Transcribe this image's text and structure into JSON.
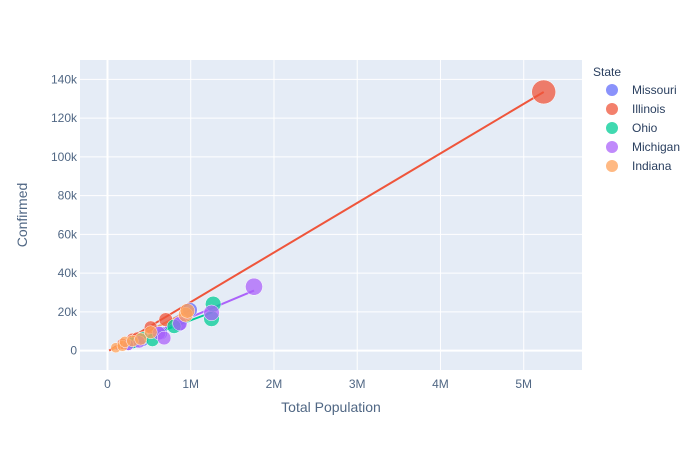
{
  "chart_data": {
    "type": "scatter",
    "xlabel": "Total Population",
    "ylabel": "Confirmed",
    "xlim": [
      -330000,
      5700000
    ],
    "ylim": [
      -10000,
      150000
    ],
    "x_ticks": [
      0,
      1000000,
      2000000,
      3000000,
      4000000,
      5000000
    ],
    "x_tick_labels": [
      "0",
      "1M",
      "2M",
      "3M",
      "4M",
      "5M"
    ],
    "y_ticks": [
      0,
      20000,
      40000,
      60000,
      80000,
      100000,
      120000,
      140000
    ],
    "y_tick_labels": [
      "0",
      "20k",
      "40k",
      "60k",
      "80k",
      "100k",
      "120k",
      "140k"
    ],
    "grid": true,
    "legend_title": "State",
    "legend_position": "right",
    "marker_size_note": "bubble size scales with population",
    "series": [
      {
        "name": "Missouri",
        "color": "#636efa",
        "x": [
          250000,
          330000,
          420000,
          640000,
          860000,
          990000
        ],
        "y": [
          3000,
          4200,
          5300,
          9000,
          13500,
          21000
        ],
        "trend": [
          [
            100000,
            1500
          ],
          [
            1000000,
            21000
          ]
        ]
      },
      {
        "name": "Illinois",
        "color": "#EF553B",
        "x": [
          180000,
          300000,
          360000,
          520000,
          700000,
          5240000
        ],
        "y": [
          3500,
          6000,
          6500,
          12000,
          16000,
          133500
        ],
        "trend": [
          [
            20000,
            0
          ],
          [
            5240000,
            133500
          ]
        ]
      },
      {
        "name": "Ohio",
        "color": "#00cc96",
        "x": [
          300000,
          420000,
          540000,
          800000,
          1250000,
          1270000
        ],
        "y": [
          4000,
          6500,
          5500,
          12500,
          16500,
          24000
        ],
        "trend": [
          [
            100000,
            1200
          ],
          [
            1270000,
            20000
          ]
        ]
      },
      {
        "name": "Michigan",
        "color": "#ab63fa",
        "x": [
          250000,
          380000,
          620000,
          680000,
          870000,
          1250000,
          1760000
        ],
        "y": [
          3000,
          4500,
          9000,
          6500,
          14000,
          19500,
          33000
        ],
        "trend": [
          [
            100000,
            1000
          ],
          [
            1760000,
            31000
          ]
        ]
      },
      {
        "name": "Indiana",
        "color": "#FFA15A",
        "x": [
          100000,
          180000,
          210000,
          300000,
          400000,
          520000,
          940000,
          960000
        ],
        "y": [
          1500,
          2500,
          4500,
          5000,
          6000,
          9500,
          18500,
          20500
        ],
        "trend": [
          [
            50000,
            500
          ],
          [
            960000,
            20000
          ]
        ]
      }
    ]
  }
}
